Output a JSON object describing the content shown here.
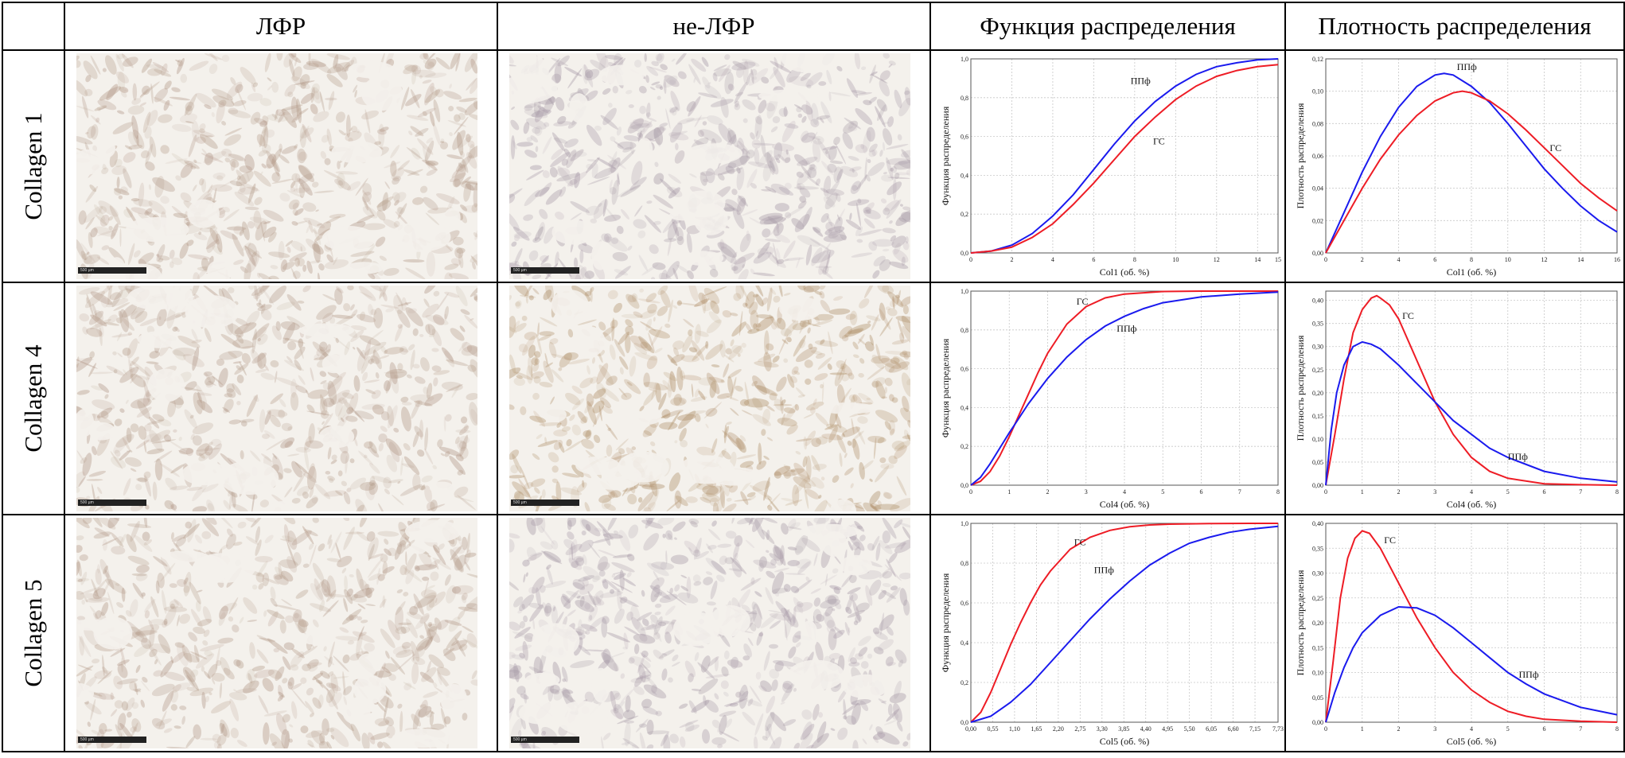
{
  "headers": {
    "corner": "",
    "col_lfr": "ЛФР",
    "col_non_lfr": "не-ЛФР",
    "col_cdf": "Функция распределения",
    "col_pdf": "Плотность распределения"
  },
  "rows": [
    {
      "label": "Collagen 1",
      "scale_left": "500 µm",
      "scale_right": "500 µm"
    },
    {
      "label": "Collagen 4",
      "scale_left": "500 µm",
      "scale_right": "500 µm"
    },
    {
      "label": "Collagen 5",
      "scale_left": "500 µm",
      "scale_right": "500 µm"
    }
  ],
  "colors": {
    "gs": "#ee1c25",
    "ppf": "#1a1aee",
    "tissue_lfr": "#b49a8a",
    "tissue_non_lfr": "#a89aa8",
    "tissue_non_lfr_c4": "#b0906a",
    "background": "#f4f1ec"
  },
  "chart_data": [
    {
      "id": "cdf1",
      "type": "line",
      "xlabel": "Col1 (об. %)",
      "ylabel": "Функция распределения",
      "xlim": [
        0,
        15
      ],
      "ylim": [
        0,
        1
      ],
      "xticks": [
        0,
        2,
        4,
        6,
        8,
        10,
        12,
        14,
        15
      ],
      "xtick_labels": [
        "0",
        "2",
        "4",
        "6",
        "8",
        "10",
        "12",
        "14",
        "15"
      ],
      "yticks": [
        0,
        0.2,
        0.4,
        0.6,
        0.8,
        1.0
      ],
      "ytick_labels": [
        "0,0",
        "0,2",
        "0,4",
        "0,6",
        "0,8",
        "1,0"
      ],
      "series": [
        {
          "name": "ППф",
          "color": "#1a1aee",
          "label_at": [
            7.8,
            0.87
          ],
          "x": [
            0,
            1,
            2,
            3,
            4,
            5,
            6,
            7,
            8,
            9,
            10,
            11,
            12,
            13,
            14,
            15
          ],
          "y": [
            0,
            0.01,
            0.04,
            0.1,
            0.19,
            0.3,
            0.43,
            0.56,
            0.68,
            0.78,
            0.86,
            0.92,
            0.96,
            0.98,
            0.995,
            1.0
          ]
        },
        {
          "name": "ГС",
          "color": "#ee1c25",
          "label_at": [
            8.9,
            0.56
          ],
          "x": [
            0,
            1,
            2,
            3,
            4,
            5,
            6,
            7,
            8,
            9,
            10,
            11,
            12,
            13,
            14,
            15
          ],
          "y": [
            0,
            0.01,
            0.03,
            0.08,
            0.15,
            0.25,
            0.36,
            0.48,
            0.6,
            0.7,
            0.79,
            0.86,
            0.91,
            0.94,
            0.96,
            0.97
          ]
        }
      ]
    },
    {
      "id": "pdf1",
      "type": "line",
      "xlabel": "Col1 (об. %)",
      "ylabel": "Плотность распределения",
      "xlim": [
        0,
        16
      ],
      "ylim": [
        0,
        0.12
      ],
      "xticks": [
        0,
        2,
        4,
        6,
        8,
        10,
        12,
        14,
        16
      ],
      "xtick_labels": [
        "0",
        "2",
        "4",
        "6",
        "8",
        "10",
        "12",
        "14",
        "16"
      ],
      "yticks": [
        0,
        0.02,
        0.04,
        0.06,
        0.08,
        0.1,
        0.12
      ],
      "ytick_labels": [
        "0,00",
        "0,02",
        "0,04",
        "0,06",
        "0,08",
        "0,10",
        "0,12"
      ],
      "series": [
        {
          "name": "ППф",
          "color": "#1a1aee",
          "label_at": [
            7.2,
            0.113
          ],
          "x": [
            0,
            1,
            2,
            3,
            4,
            5,
            6,
            6.5,
            7,
            8,
            9,
            10,
            11,
            12,
            13,
            14,
            15,
            16
          ],
          "y": [
            0,
            0.025,
            0.05,
            0.072,
            0.09,
            0.103,
            0.11,
            0.111,
            0.11,
            0.103,
            0.093,
            0.08,
            0.066,
            0.052,
            0.04,
            0.029,
            0.02,
            0.013
          ]
        },
        {
          "name": "ГС",
          "color": "#ee1c25",
          "label_at": [
            12.3,
            0.063
          ],
          "x": [
            0,
            1,
            2,
            3,
            4,
            5,
            6,
            7,
            7.5,
            8,
            9,
            10,
            11,
            12,
            13,
            14,
            15,
            16
          ],
          "y": [
            0,
            0.02,
            0.04,
            0.058,
            0.073,
            0.085,
            0.094,
            0.099,
            0.1,
            0.099,
            0.094,
            0.086,
            0.076,
            0.065,
            0.054,
            0.043,
            0.034,
            0.026
          ]
        }
      ]
    },
    {
      "id": "cdf4",
      "type": "line",
      "xlabel": "Col4 (об. %)",
      "ylabel": "Функция распределения",
      "xlim": [
        0,
        8
      ],
      "ylim": [
        0,
        1
      ],
      "xticks": [
        0,
        1,
        2,
        3,
        4,
        5,
        6,
        7,
        8
      ],
      "xtick_labels": [
        "0",
        "1",
        "2",
        "3",
        "4",
        "5",
        "6",
        "7",
        "8"
      ],
      "yticks": [
        0,
        0.2,
        0.4,
        0.6,
        0.8,
        1.0
      ],
      "ytick_labels": [
        "0,0",
        "0,2",
        "0,4",
        "0,6",
        "0,8",
        "1,0"
      ],
      "series": [
        {
          "name": "ГС",
          "color": "#ee1c25",
          "label_at": [
            2.75,
            0.93
          ],
          "x": [
            0,
            0.25,
            0.5,
            0.75,
            1,
            1.25,
            1.5,
            1.75,
            2,
            2.5,
            3,
            3.5,
            4,
            5,
            6,
            7,
            8
          ],
          "y": [
            0,
            0.02,
            0.07,
            0.15,
            0.25,
            0.36,
            0.47,
            0.58,
            0.68,
            0.83,
            0.92,
            0.965,
            0.985,
            0.998,
            1.0,
            1.0,
            1.0
          ]
        },
        {
          "name": "ППф",
          "color": "#1a1aee",
          "label_at": [
            3.8,
            0.79
          ],
          "x": [
            0,
            0.25,
            0.5,
            0.75,
            1,
            1.5,
            2,
            2.5,
            3,
            3.5,
            4,
            4.5,
            5,
            6,
            7,
            8
          ],
          "y": [
            0,
            0.04,
            0.11,
            0.19,
            0.27,
            0.42,
            0.55,
            0.66,
            0.75,
            0.82,
            0.87,
            0.91,
            0.94,
            0.97,
            0.985,
            0.995
          ]
        }
      ]
    },
    {
      "id": "pdf4",
      "type": "line",
      "xlabel": "Col4 (об. %)",
      "ylabel": "Плотность распределения",
      "xlim": [
        0,
        8
      ],
      "ylim": [
        0,
        0.42
      ],
      "xticks": [
        0,
        1,
        2,
        3,
        4,
        5,
        6,
        7,
        8
      ],
      "xtick_labels": [
        "0",
        "1",
        "2",
        "3",
        "4",
        "5",
        "6",
        "7",
        "8"
      ],
      "yticks": [
        0,
        0.05,
        0.1,
        0.15,
        0.2,
        0.25,
        0.3,
        0.35,
        0.4
      ],
      "ytick_labels": [
        "0,00",
        "0,05",
        "0,10",
        "0,15",
        "0,20",
        "0,25",
        "0,30",
        "0,35",
        "0,40"
      ],
      "series": [
        {
          "name": "ГС",
          "color": "#ee1c25",
          "label_at": [
            2.1,
            0.36
          ],
          "x": [
            0,
            0.25,
            0.5,
            0.75,
            1,
            1.25,
            1.4,
            1.5,
            1.75,
            2,
            2.5,
            3,
            3.5,
            4,
            4.5,
            5,
            6,
            7,
            8
          ],
          "y": [
            0,
            0.11,
            0.23,
            0.33,
            0.38,
            0.405,
            0.41,
            0.405,
            0.39,
            0.36,
            0.27,
            0.18,
            0.11,
            0.06,
            0.03,
            0.015,
            0.003,
            0.001,
            0
          ]
        },
        {
          "name": "ППф",
          "color": "#1a1aee",
          "label_at": [
            5.0,
            0.055
          ],
          "x": [
            0,
            0.15,
            0.3,
            0.5,
            0.75,
            1,
            1.25,
            1.5,
            2,
            2.5,
            3,
            3.5,
            4,
            4.5,
            5,
            6,
            7,
            8
          ],
          "y": [
            0,
            0.12,
            0.2,
            0.26,
            0.3,
            0.31,
            0.305,
            0.295,
            0.26,
            0.22,
            0.18,
            0.14,
            0.11,
            0.08,
            0.06,
            0.03,
            0.015,
            0.007
          ]
        }
      ]
    },
    {
      "id": "cdf5",
      "type": "line",
      "xlabel": "Col5 (об. %)",
      "ylabel": "Функция распределения",
      "xlim": [
        0,
        7.73
      ],
      "ylim": [
        0,
        1
      ],
      "xticks": [
        0,
        0.55,
        1.1,
        1.65,
        2.2,
        2.75,
        3.3,
        3.85,
        4.4,
        4.95,
        5.5,
        6.05,
        6.6,
        7.15,
        7.73
      ],
      "xtick_labels": [
        "0,00",
        "0,55",
        "1,10",
        "1,65",
        "2,20",
        "2,75",
        "3,30",
        "3,85",
        "4,40",
        "4,95",
        "5,50",
        "6,05",
        "6,60",
        "7,15",
        "7,73"
      ],
      "yticks": [
        0,
        0.2,
        0.4,
        0.6,
        0.8,
        1.0
      ],
      "ytick_labels": [
        "0,0",
        "0,2",
        "0,4",
        "0,6",
        "0,8",
        "1,0"
      ],
      "series": [
        {
          "name": "ГС",
          "color": "#ee1c25",
          "label_at": [
            2.6,
            0.89
          ],
          "x": [
            0,
            0.25,
            0.5,
            0.75,
            1,
            1.25,
            1.5,
            1.75,
            2,
            2.5,
            3,
            3.5,
            4,
            4.5,
            5,
            6,
            7,
            7.73
          ],
          "y": [
            0,
            0.05,
            0.15,
            0.27,
            0.39,
            0.5,
            0.6,
            0.69,
            0.76,
            0.87,
            0.93,
            0.965,
            0.983,
            0.992,
            0.996,
            0.999,
            1.0,
            1.0
          ]
        },
        {
          "name": "ППф",
          "color": "#1a1aee",
          "label_at": [
            3.1,
            0.75
          ],
          "x": [
            0,
            0.5,
            1,
            1.5,
            2,
            2.5,
            3,
            3.5,
            4,
            4.5,
            5,
            5.5,
            6,
            6.5,
            7,
            7.73
          ],
          "y": [
            0,
            0.03,
            0.1,
            0.19,
            0.3,
            0.41,
            0.52,
            0.62,
            0.71,
            0.79,
            0.85,
            0.9,
            0.93,
            0.955,
            0.97,
            0.985
          ]
        }
      ]
    },
    {
      "id": "pdf5",
      "type": "line",
      "xlabel": "Col5 (об. %)",
      "ylabel": "Плотность распределения",
      "xlim": [
        0,
        8
      ],
      "ylim": [
        0,
        0.4
      ],
      "xticks": [
        0,
        1,
        2,
        3,
        4,
        5,
        6,
        7,
        8
      ],
      "xtick_labels": [
        "0",
        "1",
        "2",
        "3",
        "4",
        "5",
        "6",
        "7",
        "8"
      ],
      "yticks": [
        0,
        0.05,
        0.1,
        0.15,
        0.2,
        0.25,
        0.3,
        0.35,
        0.4
      ],
      "ytick_labels": [
        "0,00",
        "0,05",
        "0,10",
        "0,15",
        "0,20",
        "0,25",
        "0,30",
        "0,35",
        "0,40"
      ],
      "series": [
        {
          "name": "ГС",
          "color": "#ee1c25",
          "label_at": [
            1.6,
            0.36
          ],
          "x": [
            0,
            0.2,
            0.4,
            0.6,
            0.8,
            1,
            1.2,
            1.5,
            2,
            2.5,
            3,
            3.5,
            4,
            4.5,
            5,
            5.5,
            6,
            7,
            8
          ],
          "y": [
            0,
            0.12,
            0.25,
            0.33,
            0.37,
            0.385,
            0.38,
            0.35,
            0.28,
            0.21,
            0.15,
            0.1,
            0.065,
            0.04,
            0.022,
            0.012,
            0.006,
            0.002,
            0
          ]
        },
        {
          "name": "ППф",
          "color": "#1a1aee",
          "label_at": [
            5.3,
            0.09
          ],
          "x": [
            0,
            0.25,
            0.5,
            0.75,
            1,
            1.5,
            2,
            2.5,
            3,
            3.5,
            4,
            4.5,
            5,
            5.5,
            6,
            7,
            8
          ],
          "y": [
            0,
            0.06,
            0.11,
            0.15,
            0.18,
            0.215,
            0.232,
            0.23,
            0.215,
            0.19,
            0.16,
            0.13,
            0.1,
            0.077,
            0.057,
            0.03,
            0.015
          ]
        }
      ]
    }
  ]
}
